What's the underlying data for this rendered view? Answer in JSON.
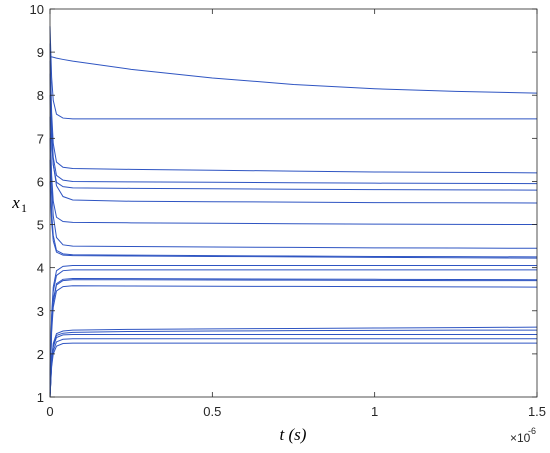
{
  "chart_data": {
    "type": "line",
    "xlabel": "t (s)",
    "ylabel": "x",
    "ylabel_sub": "1",
    "x_multiplier": "×10",
    "x_multiplier_exp": "-6",
    "color": "#2f55c2",
    "x": [
      0,
      0.005,
      0.01,
      0.02,
      0.04,
      0.07,
      0.25,
      0.5,
      0.75,
      1,
      1.25,
      1.5
    ],
    "xlim": [
      0,
      1.5
    ],
    "xticks": [
      0,
      0.5,
      1,
      1.5
    ],
    "ylim": [
      1,
      10
    ],
    "yticks": [
      1,
      2,
      3,
      4,
      5,
      6,
      7,
      8,
      9,
      10
    ],
    "series": [
      {
        "values": [
          8.9,
          8.89,
          8.88,
          8.86,
          8.83,
          8.79,
          8.6,
          8.4,
          8.25,
          8.15,
          8.09,
          8.05
        ]
      },
      {
        "values": [
          9.6,
          8.42,
          7.88,
          7.56,
          7.47,
          7.45,
          7.45,
          7.45,
          7.45,
          7.45,
          7.45,
          7.45
        ]
      },
      {
        "values": [
          9.2,
          7.6,
          6.88,
          6.45,
          6.33,
          6.3,
          6.28,
          6.26,
          6.24,
          6.22,
          6.21,
          6.2
        ]
      },
      {
        "values": [
          8.8,
          7.26,
          6.56,
          6.14,
          6.03,
          6.0,
          5.99,
          5.98,
          5.97,
          5.96,
          5.955,
          5.95
        ]
      },
      {
        "values": [
          8.5,
          7.04,
          6.38,
          5.98,
          5.88,
          5.85,
          5.84,
          5.83,
          5.82,
          5.81,
          5.805,
          5.8
        ]
      },
      {
        "values": [
          8.0,
          6.9,
          6.4,
          5.9,
          5.65,
          5.57,
          5.54,
          5.53,
          5.52,
          5.51,
          5.505,
          5.5
        ]
      },
      {
        "values": [
          7.5,
          6.15,
          5.54,
          5.17,
          5.07,
          5.05,
          5.04,
          5.03,
          5.02,
          5.01,
          5.005,
          5.0
        ]
      },
      {
        "values": [
          7.0,
          5.9,
          5.2,
          4.7,
          4.53,
          4.5,
          4.49,
          4.48,
          4.47,
          4.46,
          4.455,
          4.45
        ]
      },
      {
        "values": [
          6.5,
          5.3,
          4.75,
          4.4,
          4.32,
          4.3,
          4.29,
          4.28,
          4.27,
          4.26,
          4.255,
          4.25
        ]
      },
      {
        "values": [
          6.0,
          5.05,
          4.62,
          4.36,
          4.29,
          4.28,
          4.27,
          4.26,
          4.25,
          4.24,
          4.23,
          4.22
        ]
      },
      {
        "values": [
          1.5,
          2.9,
          3.55,
          3.93,
          4.03,
          4.05,
          4.05,
          4.05,
          4.05,
          4.05,
          4.05,
          4.05
        ]
      },
      {
        "values": [
          1.4,
          2.8,
          3.45,
          3.82,
          3.93,
          3.95,
          3.95,
          3.95,
          3.95,
          3.95,
          3.95,
          3.95
        ]
      },
      {
        "values": [
          1.3,
          2.65,
          3.25,
          3.63,
          3.73,
          3.75,
          3.745,
          3.74,
          3.735,
          3.73,
          3.725,
          3.72
        ]
      },
      {
        "values": [
          1.2,
          2.6,
          3.2,
          3.6,
          3.7,
          3.72,
          3.72,
          3.715,
          3.71,
          3.705,
          3.7,
          3.7
        ]
      },
      {
        "values": [
          1.1,
          2.5,
          3.08,
          3.46,
          3.56,
          3.58,
          3.575,
          3.57,
          3.565,
          3.56,
          3.555,
          3.55
        ]
      },
      {
        "values": [
          1.0,
          1.85,
          2.24,
          2.47,
          2.53,
          2.55,
          2.57,
          2.58,
          2.59,
          2.6,
          2.61,
          2.62
        ]
      },
      {
        "values": [
          1.0,
          1.83,
          2.2,
          2.43,
          2.48,
          2.5,
          2.52,
          2.53,
          2.54,
          2.545,
          2.55,
          2.55
        ]
      },
      {
        "values": [
          1.0,
          1.8,
          2.16,
          2.38,
          2.44,
          2.45,
          2.45,
          2.45,
          2.45,
          2.45,
          2.45,
          2.45
        ]
      },
      {
        "values": [
          1.0,
          1.75,
          2.07,
          2.28,
          2.34,
          2.35,
          2.35,
          2.35,
          2.35,
          2.35,
          2.35,
          2.35
        ]
      },
      {
        "values": [
          1.0,
          1.7,
          2.0,
          2.18,
          2.24,
          2.25,
          2.25,
          2.25,
          2.25,
          2.25,
          2.25,
          2.25
        ]
      }
    ]
  }
}
